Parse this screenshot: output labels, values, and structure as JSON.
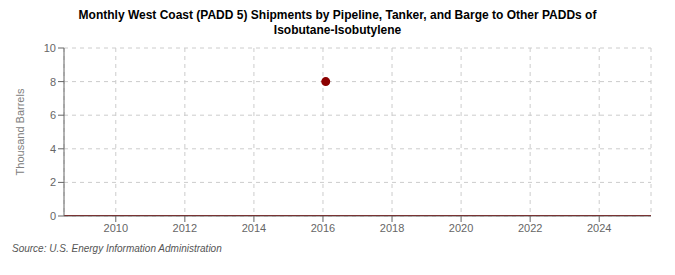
{
  "chart_data": {
    "type": "line",
    "title": "Monthly West Coast (PADD 5) Shipments by Pipeline, Tanker, and Barge to Other PADDs of\nIsobutane-Isobutylene",
    "ylabel": "Thousand Barrels",
    "source": "Source: U.S. Energy Information Administration",
    "xlim": [
      2008.5,
      2025.5
    ],
    "ylim": [
      0,
      10
    ],
    "xticks": [
      2010,
      2012,
      2014,
      2016,
      2018,
      2020,
      2022,
      2024
    ],
    "yticks": [
      0,
      2,
      4,
      6,
      8,
      10
    ],
    "grid": true,
    "series": [
      {
        "type": "line",
        "color": "#8b0000",
        "x": [
          2008.5,
          2025.5
        ],
        "values": [
          0,
          0
        ]
      },
      {
        "type": "scatter",
        "color": "#8b0000",
        "marker": "circle",
        "x": [
          2016.08
        ],
        "values": [
          8
        ]
      }
    ]
  }
}
